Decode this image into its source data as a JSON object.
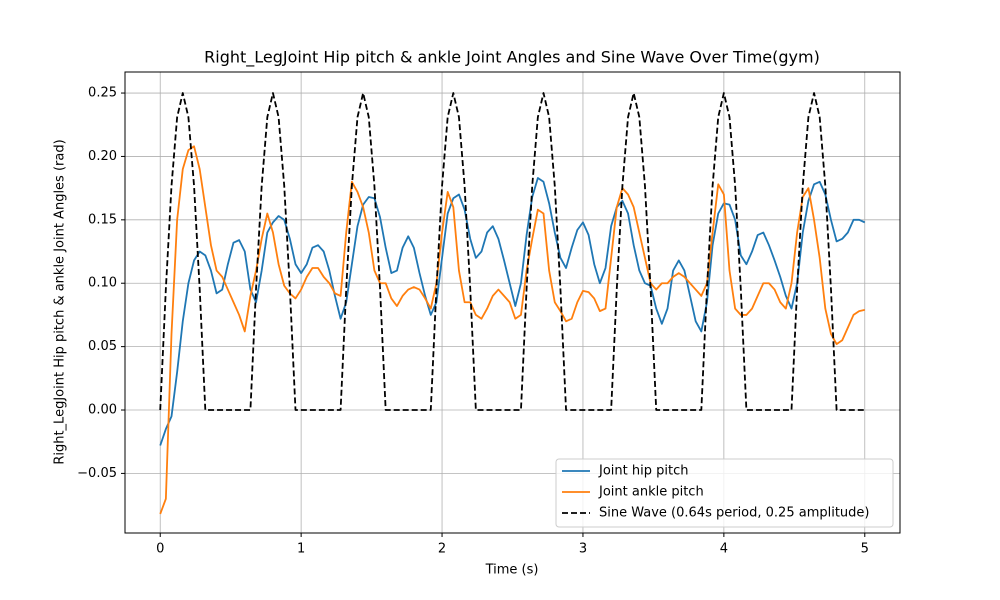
{
  "chart_data": {
    "type": "line",
    "title": "Right_LegJoint Hip pitch & ankle Joint Angles and Sine Wave Over Time(gym)",
    "xlabel": "Time (s)",
    "ylabel": "Right_LegJoint Hip pitch & ankle Joint Angles (rad)",
    "x": [
      0,
      0.04,
      0.08,
      0.12,
      0.16,
      0.2,
      0.24,
      0.28,
      0.32,
      0.36,
      0.4,
      0.44,
      0.48,
      0.52,
      0.56,
      0.6,
      0.64,
      0.68,
      0.72,
      0.76,
      0.8,
      0.84,
      0.88,
      0.92,
      0.96,
      1,
      1.04,
      1.08,
      1.12,
      1.16,
      1.2,
      1.24,
      1.28,
      1.32,
      1.36,
      1.4,
      1.44,
      1.48,
      1.52,
      1.56,
      1.6,
      1.64,
      1.68,
      1.72,
      1.76,
      1.8,
      1.84,
      1.88,
      1.92,
      1.96,
      2,
      2.04,
      2.08,
      2.12,
      2.16,
      2.2,
      2.24,
      2.28,
      2.32,
      2.36,
      2.4,
      2.44,
      2.48,
      2.52,
      2.56,
      2.6,
      2.64,
      2.68,
      2.72,
      2.76,
      2.8,
      2.84,
      2.88,
      2.92,
      2.96,
      3,
      3.04,
      3.08,
      3.12,
      3.16,
      3.2,
      3.24,
      3.28,
      3.32,
      3.36,
      3.4,
      3.44,
      3.48,
      3.52,
      3.56,
      3.6,
      3.64,
      3.68,
      3.72,
      3.76,
      3.8,
      3.84,
      3.88,
      3.92,
      3.96,
      4,
      4.04,
      4.08,
      4.12,
      4.16,
      4.2,
      4.24,
      4.28,
      4.32,
      4.36,
      4.4,
      4.44,
      4.48,
      4.52,
      4.56,
      4.6,
      4.64,
      4.68,
      4.72,
      4.76,
      4.8,
      4.84,
      4.88,
      4.92,
      4.96,
      5
    ],
    "series": [
      {
        "name": "Joint hip pitch",
        "color": "#1f77b4",
        "dashed": false,
        "values": [
          -0.028,
          -0.015,
          -0.005,
          0.03,
          0.07,
          0.1,
          0.118,
          0.125,
          0.122,
          0.11,
          0.092,
          0.095,
          0.115,
          0.132,
          0.134,
          0.125,
          0.095,
          0.085,
          0.11,
          0.14,
          0.148,
          0.153,
          0.15,
          0.135,
          0.115,
          0.108,
          0.115,
          0.128,
          0.13,
          0.125,
          0.11,
          0.09,
          0.072,
          0.085,
          0.115,
          0.145,
          0.162,
          0.168,
          0.167,
          0.152,
          0.128,
          0.108,
          0.11,
          0.128,
          0.137,
          0.128,
          0.108,
          0.09,
          0.075,
          0.085,
          0.12,
          0.155,
          0.167,
          0.17,
          0.158,
          0.135,
          0.12,
          0.125,
          0.14,
          0.145,
          0.135,
          0.118,
          0.1,
          0.082,
          0.1,
          0.138,
          0.168,
          0.183,
          0.18,
          0.163,
          0.14,
          0.12,
          0.112,
          0.128,
          0.142,
          0.148,
          0.138,
          0.115,
          0.1,
          0.112,
          0.145,
          0.16,
          0.165,
          0.155,
          0.13,
          0.11,
          0.1,
          0.098,
          0.08,
          0.068,
          0.08,
          0.11,
          0.118,
          0.11,
          0.09,
          0.07,
          0.062,
          0.085,
          0.13,
          0.155,
          0.163,
          0.162,
          0.15,
          0.122,
          0.115,
          0.125,
          0.138,
          0.14,
          0.13,
          0.118,
          0.105,
          0.09,
          0.08,
          0.1,
          0.14,
          0.165,
          0.178,
          0.18,
          0.17,
          0.15,
          0.133,
          0.135,
          0.14,
          0.15,
          0.15,
          0.148
        ]
      },
      {
        "name": "Joint ankle pitch",
        "color": "#ff7f0e",
        "dashed": false,
        "values": [
          -0.082,
          -0.07,
          0.06,
          0.15,
          0.19,
          0.205,
          0.208,
          0.19,
          0.16,
          0.13,
          0.11,
          0.105,
          0.095,
          0.085,
          0.075,
          0.062,
          0.09,
          0.11,
          0.135,
          0.155,
          0.14,
          0.115,
          0.098,
          0.092,
          0.088,
          0.095,
          0.105,
          0.112,
          0.112,
          0.105,
          0.1,
          0.092,
          0.09,
          0.14,
          0.18,
          0.172,
          0.16,
          0.14,
          0.11,
          0.1,
          0.1,
          0.088,
          0.082,
          0.09,
          0.095,
          0.097,
          0.095,
          0.088,
          0.08,
          0.1,
          0.14,
          0.172,
          0.16,
          0.11,
          0.085,
          0.085,
          0.075,
          0.072,
          0.08,
          0.09,
          0.095,
          0.09,
          0.085,
          0.072,
          0.075,
          0.11,
          0.135,
          0.158,
          0.155,
          0.11,
          0.085,
          0.078,
          0.07,
          0.072,
          0.085,
          0.094,
          0.093,
          0.088,
          0.078,
          0.08,
          0.12,
          0.16,
          0.175,
          0.17,
          0.16,
          0.14,
          0.12,
          0.1,
          0.095,
          0.1,
          0.1,
          0.105,
          0.108,
          0.105,
          0.1,
          0.095,
          0.09,
          0.1,
          0.14,
          0.178,
          0.17,
          0.11,
          0.08,
          0.075,
          0.075,
          0.08,
          0.09,
          0.1,
          0.1,
          0.095,
          0.085,
          0.08,
          0.1,
          0.14,
          0.168,
          0.175,
          0.15,
          0.12,
          0.08,
          0.06,
          0.052,
          0.055,
          0.065,
          0.075,
          0.078,
          0.079
        ]
      },
      {
        "name": "Sine Wave (0.64s period, 0.25 amplitude)",
        "color": "#000000",
        "dashed": true,
        "values": [
          0,
          0.0957,
          0.1768,
          0.231,
          0.25,
          0.231,
          0.1768,
          0.0957,
          0,
          0,
          0,
          0,
          0,
          0,
          0,
          0,
          0,
          0.0957,
          0.1768,
          0.231,
          0.25,
          0.231,
          0.1768,
          0.0957,
          0,
          0,
          0,
          0,
          0,
          0,
          0,
          0,
          0,
          0.0957,
          0.1768,
          0.231,
          0.25,
          0.231,
          0.1768,
          0.0957,
          0,
          0,
          0,
          0,
          0,
          0,
          0,
          0,
          0,
          0.0957,
          0.1768,
          0.231,
          0.25,
          0.231,
          0.1768,
          0.0957,
          0,
          0,
          0,
          0,
          0,
          0,
          0,
          0,
          0,
          0.0957,
          0.1768,
          0.231,
          0.25,
          0.231,
          0.1768,
          0.0957,
          0,
          0,
          0,
          0,
          0,
          0,
          0,
          0,
          0,
          0.0957,
          0.1768,
          0.231,
          0.25,
          0.231,
          0.1768,
          0.0957,
          0,
          0,
          0,
          0,
          0,
          0,
          0,
          0,
          0,
          0.0957,
          0.1768,
          0.231,
          0.25,
          0.231,
          0.1768,
          0.0957,
          0,
          0,
          0,
          0,
          0,
          0,
          0,
          0,
          0,
          0.0957,
          0.1768,
          0.231,
          0.25,
          0.231,
          0.1768,
          0.0957,
          0,
          0,
          0,
          0,
          0,
          0
        ]
      }
    ],
    "xlim": [
      -0.25,
      5.25
    ],
    "ylim": [
      -0.097,
      0.2666
    ],
    "xticks": [
      0,
      1,
      2,
      3,
      4,
      5
    ],
    "yticks": [
      {
        "value": -0.05,
        "label": "−0.05"
      },
      {
        "value": 0,
        "label": "0.00"
      },
      {
        "value": 0.05,
        "label": "0.05"
      },
      {
        "value": 0.1,
        "label": "0.10"
      },
      {
        "value": 0.15,
        "label": "0.15"
      },
      {
        "value": 0.2,
        "label": "0.20"
      },
      {
        "value": 0.25,
        "label": "0.25"
      }
    ],
    "grid": true,
    "legend": "lower right"
  }
}
